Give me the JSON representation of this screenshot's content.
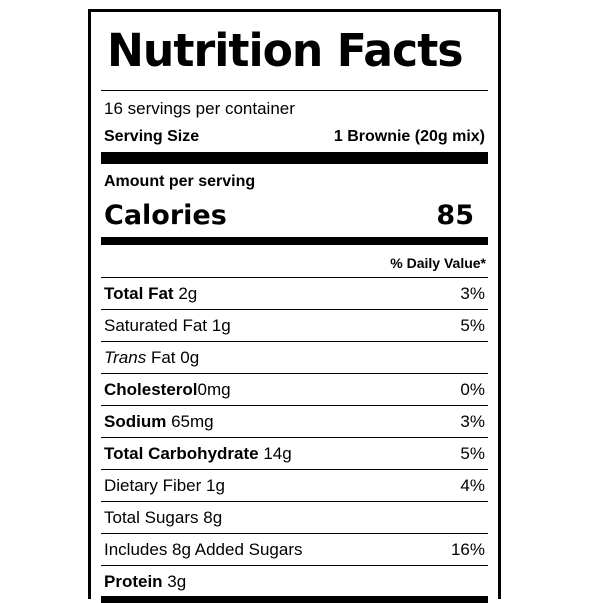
{
  "title": "Nutrition Facts",
  "servings_per_container": "16 servings per container",
  "serving_size": {
    "label": "Serving Size",
    "value": "1 Brownie (20g mix)"
  },
  "amount_per_serving": "Amount per serving",
  "calories": {
    "label": "Calories",
    "value": "85"
  },
  "daily_value_header": "% Daily Value*",
  "nutrients": [
    {
      "name": "Total Fat",
      "amount": "2g",
      "dv": "3%"
    },
    {
      "name": "Saturated Fat",
      "amount": "1g",
      "dv": "5%"
    },
    {
      "name": "Trans",
      "name_rest": "Fat",
      "amount": "0g",
      "dv": ""
    },
    {
      "name": "Cholesterol",
      "amount": "0mg",
      "dv": "0%"
    },
    {
      "name": "Sodium",
      "amount": "65mg",
      "dv": "3%"
    },
    {
      "name": "Total Carbohydrate",
      "amount": "14g",
      "dv": "5%"
    },
    {
      "name": "Dietary Fiber",
      "amount": "1g",
      "dv": "4%"
    },
    {
      "name": "Total Sugars",
      "amount": "8g",
      "dv": ""
    },
    {
      "name": "Includes 8g Added Sugars",
      "amount": "",
      "dv": "16%"
    },
    {
      "name": "Protein",
      "amount": "3g",
      "dv": ""
    }
  ]
}
